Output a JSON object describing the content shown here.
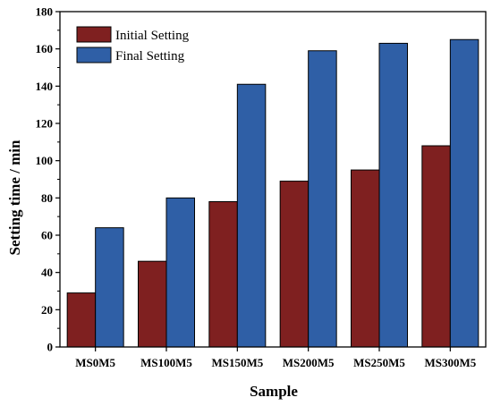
{
  "chart_data": {
    "type": "bar",
    "xlabel": "Sample",
    "ylabel": "Setting time / min",
    "categories": [
      "MS0M5",
      "MS100M5",
      "MS150M5",
      "MS200M5",
      "MS250M5",
      "MS300M5"
    ],
    "series": [
      {
        "name": "Initial Setting",
        "color": "#7f2020",
        "values": [
          29,
          46,
          78,
          89,
          95,
          108
        ]
      },
      {
        "name": "Final Setting",
        "color": "#2f5fa6",
        "values": [
          64,
          80,
          141,
          159,
          163,
          165
        ]
      }
    ],
    "ylim": [
      0,
      180
    ],
    "yticks": [
      0,
      20,
      40,
      60,
      80,
      100,
      120,
      140,
      160,
      180
    ],
    "grid": false,
    "legend_position": "top-left"
  }
}
